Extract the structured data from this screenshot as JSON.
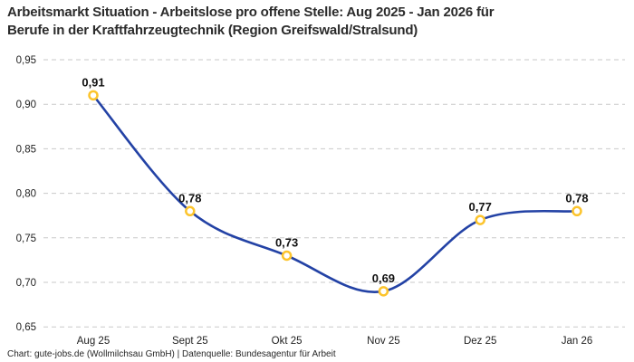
{
  "title": {
    "line1": "Arbeitsmarkt Situation - Arbeitslose pro offene Stelle: Aug 2025 - Jan 2026 für",
    "line2": "Berufe in der Kraftfahrzeugtechnik (Region Greifswald/Stralsund)"
  },
  "footer": "Chart: gute-jobs.de (Wollmilchsau GmbH) | Datenquelle: Bundesagentur für Arbeit",
  "chart_data": {
    "type": "line",
    "title": "Arbeitsmarkt Situation - Arbeitslose pro offene Stelle: Aug 2025 - Jan 2026 für Berufe in der Kraftfahrzeugtechnik (Region Greifswald/Stralsund)",
    "categories": [
      "Aug 25",
      "Sept 25",
      "Okt 25",
      "Nov 25",
      "Dez 25",
      "Jan 26"
    ],
    "values": [
      0.91,
      0.78,
      0.73,
      0.69,
      0.77,
      0.78
    ],
    "point_labels": [
      "0,91",
      "0,78",
      "0,73",
      "0,69",
      "0,77",
      "0,78"
    ],
    "y_ticks": [
      "0,95",
      "0,90",
      "0,85",
      "0,80",
      "0,75",
      "0,70",
      "0,65"
    ],
    "y_tick_values": [
      0.95,
      0.9,
      0.85,
      0.8,
      0.75,
      0.7,
      0.65
    ],
    "ylim": [
      0.65,
      0.95
    ],
    "xlabel": "",
    "ylabel": "",
    "grid": "horizontal-dashed",
    "legend": "none",
    "line_style": "smooth",
    "colors": {
      "line": "#2342a5",
      "marker_ring": "#fcc42c",
      "marker_fill": "#ffffff",
      "grid": "#c9c9c9",
      "title_text": "#2b2b2b",
      "tick_text": "#1f1f1f"
    }
  }
}
